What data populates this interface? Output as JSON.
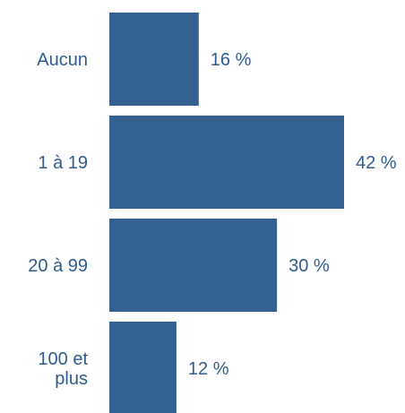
{
  "chart_data": {
    "type": "bar",
    "orientation": "horizontal",
    "categories": [
      [
        "Aucun"
      ],
      [
        "1 à 19"
      ],
      [
        "20 à 99"
      ],
      [
        "100 et",
        "plus"
      ]
    ],
    "values": [
      16,
      42,
      30,
      12
    ],
    "value_labels": [
      "16 %",
      "42 %",
      "30 %",
      "12 %"
    ],
    "unit": "%",
    "xlim": [
      0,
      42
    ],
    "grid": false,
    "legend": "none",
    "bar_color": "#356192",
    "text_color": "#2f5b8f",
    "title": "",
    "xlabel": "",
    "ylabel": ""
  }
}
